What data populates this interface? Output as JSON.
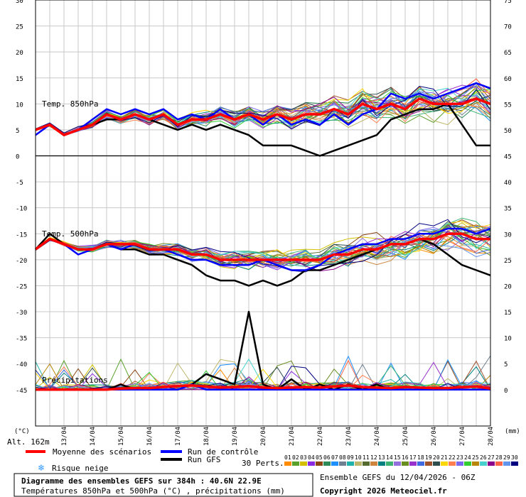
{
  "chart_data": {
    "type": "line",
    "title": "Diagramme des ensembles GEFS sur 384h : 40.6N 22.9E",
    "subtitle": "Températures 850hPa et 500hPa (°C) , précipitations (mm)",
    "source": "Ensemble GEFS du 12/04/2026 - 06Z",
    "copyright": "Copyright 2026 Meteociel.fr",
    "altitude": "Alt. 162m",
    "left_axis_unit": "(°C)",
    "right_axis_unit": "(mm)",
    "left_ticks": [
      30,
      25,
      20,
      15,
      10,
      5,
      0,
      -5,
      -10,
      -15,
      -20,
      -25,
      -30,
      -35,
      -40,
      -45
    ],
    "right_ticks": [
      75,
      70,
      65,
      60,
      55,
      50,
      45,
      40,
      35,
      30,
      25,
      20,
      15,
      10,
      5,
      0
    ],
    "x_dates": [
      "13/04",
      "14/04",
      "15/04",
      "16/04",
      "17/04",
      "18/04",
      "19/04",
      "20/04",
      "21/04",
      "22/04",
      "23/04",
      "24/04",
      "25/04",
      "26/04",
      "27/04",
      "28/04"
    ],
    "x_hours_range": [
      0,
      384
    ],
    "panel_labels": [
      "Temp. 850hPa",
      "Temp. 500hPa",
      "Précipitations"
    ],
    "legend": {
      "mean": "Moyenne des scénarios",
      "control": "Run de contrôle",
      "gfs": "Run GFS",
      "snow": "Risque neige",
      "perts": "30 Perts."
    },
    "perturbation_labels": [
      "01",
      "02",
      "03",
      "04",
      "05",
      "06",
      "07",
      "08",
      "09",
      "10",
      "11",
      "12",
      "13",
      "14",
      "15",
      "16",
      "17",
      "18",
      "19",
      "20",
      "21",
      "22",
      "23",
      "24",
      "25",
      "26",
      "27",
      "28",
      "29",
      "30"
    ],
    "perturbation_colors": [
      "#ff8c00",
      "#5aa02c",
      "#d4c000",
      "#8a2be2",
      "#8b4513",
      "#2e8b57",
      "#1e90ff",
      "#708090",
      "#20b2aa",
      "#bdb76b",
      "#556b2f",
      "#cd853f",
      "#008080",
      "#3cb371",
      "#9370db",
      "#6b8e23",
      "#9932cc",
      "#4169e1",
      "#a0522d",
      "#2f4f4f",
      "#ffd700",
      "#ff7f50",
      "#7b68ee",
      "#32cd32",
      "#b8860b",
      "#48d1cc",
      "#8b008b",
      "#ff6347",
      "#6495ed",
      "#000080"
    ],
    "series": [
      {
        "name": "Moyenne des scénarios",
        "panel": "850hPa",
        "color": "#ff0000",
        "x": [
          0,
          12,
          24,
          36,
          48,
          60,
          72,
          84,
          96,
          108,
          120,
          132,
          144,
          156,
          168,
          180,
          192,
          204,
          216,
          228,
          240,
          252,
          264,
          276,
          288,
          300,
          312,
          324,
          336,
          348,
          360,
          372,
          384
        ],
        "values": [
          5,
          6,
          4,
          5,
          6,
          8,
          7,
          8,
          7,
          8,
          6,
          7,
          7,
          8,
          7,
          8,
          7,
          8,
          7,
          8,
          8,
          9,
          8,
          10,
          9,
          10,
          9,
          11,
          10,
          10,
          10,
          11,
          10
        ]
      },
      {
        "name": "Run de contrôle",
        "panel": "850hPa",
        "color": "#0000ff",
        "x": [
          0,
          12,
          24,
          36,
          48,
          60,
          72,
          84,
          96,
          108,
          120,
          132,
          144,
          156,
          168,
          180,
          192,
          204,
          216,
          228,
          240,
          252,
          264,
          276,
          288,
          300,
          312,
          324,
          336,
          348,
          360,
          372,
          384
        ],
        "values": [
          4,
          6,
          4,
          5,
          7,
          9,
          8,
          9,
          8,
          9,
          7,
          8,
          7,
          9,
          7,
          8,
          6,
          8,
          6,
          7,
          6,
          8,
          6,
          8,
          9,
          12,
          11,
          12,
          11,
          12,
          13,
          14,
          13
        ]
      },
      {
        "name": "Run GFS",
        "panel": "850hPa",
        "color": "#000000",
        "x": [
          0,
          12,
          24,
          36,
          48,
          60,
          72,
          84,
          96,
          108,
          120,
          132,
          144,
          156,
          168,
          180,
          192,
          204,
          216,
          228,
          240,
          252,
          264,
          276,
          288,
          300,
          312,
          324,
          336,
          348,
          360,
          372,
          384
        ],
        "values": [
          5,
          6,
          4,
          5,
          6,
          7,
          7,
          8,
          7,
          6,
          5,
          6,
          5,
          6,
          5,
          4,
          2,
          2,
          2,
          1,
          0,
          1,
          2,
          3,
          4,
          7,
          8,
          9,
          9,
          10,
          6,
          2,
          2
        ]
      },
      {
        "name": "Moyenne des scénarios",
        "panel": "500hPa",
        "color": "#ff0000",
        "x": [
          0,
          12,
          24,
          36,
          48,
          60,
          72,
          84,
          96,
          108,
          120,
          132,
          144,
          156,
          168,
          180,
          192,
          204,
          216,
          228,
          240,
          252,
          264,
          276,
          288,
          300,
          312,
          324,
          336,
          348,
          360,
          372,
          384
        ],
        "values": [
          -18,
          -16,
          -17,
          -18,
          -18,
          -17,
          -17,
          -17,
          -18,
          -18,
          -18,
          -19,
          -19,
          -20,
          -20,
          -20,
          -20,
          -20,
          -20,
          -20,
          -20,
          -19,
          -19,
          -18,
          -18,
          -17,
          -17,
          -16,
          -16,
          -15,
          -15,
          -16,
          -16
        ]
      },
      {
        "name": "Run de contrôle",
        "panel": "500hPa",
        "color": "#0000ff",
        "x": [
          0,
          12,
          24,
          36,
          48,
          60,
          72,
          84,
          96,
          108,
          120,
          132,
          144,
          156,
          168,
          180,
          192,
          204,
          216,
          228,
          240,
          252,
          264,
          276,
          288,
          300,
          312,
          324,
          336,
          348,
          360,
          372,
          384
        ],
        "values": [
          -18,
          -16,
          -17,
          -19,
          -18,
          -17,
          -18,
          -17,
          -18,
          -18,
          -19,
          -20,
          -20,
          -21,
          -21,
          -21,
          -20,
          -21,
          -22,
          -22,
          -21,
          -19,
          -18,
          -17,
          -17,
          -16,
          -16,
          -15,
          -15,
          -14,
          -14,
          -15,
          -14
        ]
      },
      {
        "name": "Run GFS",
        "panel": "500hPa",
        "color": "#000000",
        "x": [
          0,
          12,
          24,
          36,
          48,
          60,
          72,
          84,
          96,
          108,
          120,
          132,
          144,
          156,
          168,
          180,
          192,
          204,
          216,
          228,
          240,
          252,
          264,
          276,
          288,
          300,
          312,
          324,
          336,
          348,
          360,
          372,
          384
        ],
        "values": [
          -18,
          -15,
          -17,
          -18,
          -18,
          -17,
          -18,
          -18,
          -19,
          -19,
          -20,
          -21,
          -23,
          -24,
          -24,
          -25,
          -24,
          -25,
          -24,
          -22,
          -22,
          -21,
          -20,
          -19,
          -18,
          -17,
          -17,
          -16,
          -17,
          -19,
          -21,
          -22,
          -23
        ]
      },
      {
        "name": "Moyenne des scénarios",
        "panel": "precip",
        "color": "#ff0000",
        "x": [
          0,
          12,
          24,
          36,
          48,
          60,
          72,
          84,
          96,
          108,
          120,
          132,
          144,
          156,
          168,
          180,
          192,
          204,
          216,
          228,
          240,
          252,
          264,
          276,
          288,
          300,
          312,
          324,
          336,
          348,
          360,
          372,
          384
        ],
        "values": [
          0,
          0,
          0,
          0,
          0,
          0,
          0.2,
          0.3,
          0.3,
          0.5,
          0.7,
          0.8,
          0.6,
          0.4,
          0.5,
          0.7,
          0.4,
          0.3,
          0.4,
          0.5,
          0.4,
          0.6,
          0.8,
          0.5,
          0.4,
          0.3,
          0.5,
          0.4,
          0.3,
          0.3,
          0.5,
          0.6,
          0.2
        ]
      },
      {
        "name": "Run de contrôle",
        "panel": "precip",
        "color": "#0000ff",
        "x": [
          0,
          12,
          24,
          36,
          48,
          60,
          72,
          84,
          96,
          108,
          120,
          132,
          144,
          156,
          168,
          180,
          192,
          204,
          216,
          228,
          240,
          252,
          264,
          276,
          288,
          300,
          312,
          324,
          336,
          348,
          360,
          372,
          384
        ],
        "values": [
          0,
          0,
          0,
          0,
          0,
          0,
          0,
          0,
          0,
          0,
          0,
          1,
          0,
          0,
          0,
          0,
          0,
          0,
          0,
          0,
          0,
          0,
          0,
          0,
          0,
          0,
          0,
          0,
          0,
          0,
          0,
          0,
          0
        ]
      },
      {
        "name": "Run GFS",
        "panel": "precip",
        "color": "#000000",
        "x": [
          0,
          12,
          24,
          36,
          48,
          60,
          72,
          84,
          96,
          108,
          120,
          132,
          144,
          156,
          168,
          180,
          192,
          204,
          216,
          228,
          240,
          252,
          264,
          276,
          288,
          300,
          312,
          324,
          336,
          348,
          360,
          372,
          384
        ],
        "values": [
          0,
          0,
          0,
          0,
          0,
          0,
          1,
          0,
          0,
          0,
          0,
          1,
          3,
          2,
          1,
          15,
          1,
          0,
          2,
          0,
          1,
          0,
          1,
          0,
          1,
          0,
          0,
          0,
          0,
          0,
          0,
          0,
          0
        ]
      }
    ]
  }
}
